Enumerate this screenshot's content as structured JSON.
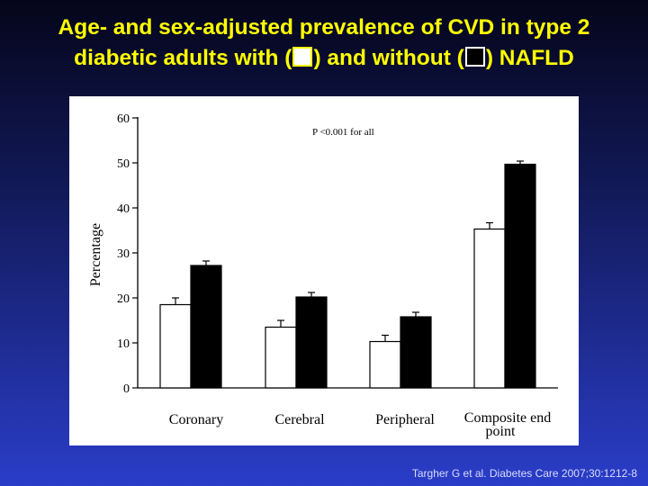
{
  "slide": {
    "title_line1": "Age- and sex-adjusted prevalence of CVD in type 2",
    "title_line2_a": "diabetic adults with (",
    "title_line2_b": ") and without (",
    "title_line2_c": ") NAFLD",
    "citation": "Targher G et al. Diabetes Care 2007;30:1212-8"
  },
  "colors": {
    "title": "#ffff00",
    "with_nafld": "#ffffff",
    "without_nafld": "#000000",
    "background_top": "#05051a",
    "background_bottom": "#2a3dc8"
  },
  "chart_data": {
    "type": "bar",
    "title": "",
    "ylabel": "Percentage",
    "xlabel": "",
    "annotation": "P <0.001 for all",
    "ylim": [
      0,
      60
    ],
    "yticks": [
      0,
      10,
      20,
      30,
      40,
      50,
      60
    ],
    "categories": [
      "Coronary",
      "Cerebral",
      "Peripheral",
      "Composite end point"
    ],
    "series": [
      {
        "fill": "#ffffff",
        "values": [
          18.5,
          13.5,
          10.3,
          35.3
        ],
        "error_upper": [
          20.0,
          15.0,
          11.7,
          36.7
        ]
      },
      {
        "fill": "#000000",
        "values": [
          27.2,
          20.2,
          15.8,
          49.7
        ],
        "error_upper": [
          28.2,
          21.2,
          16.8,
          50.4
        ]
      }
    ]
  }
}
